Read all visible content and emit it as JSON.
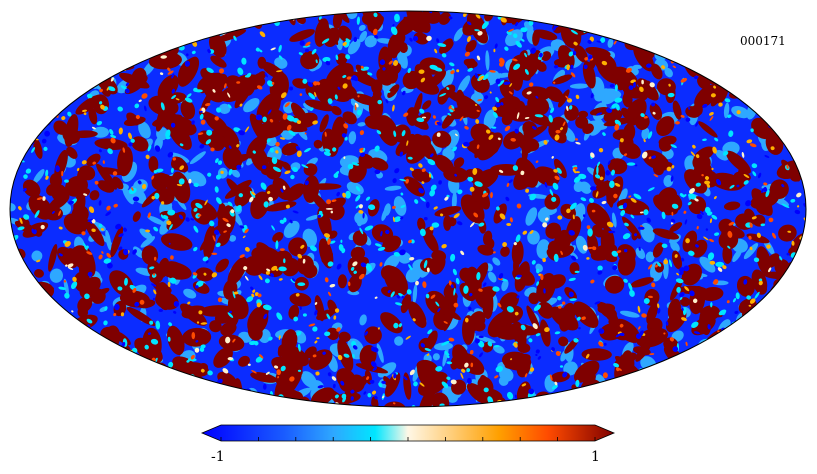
{
  "map": {
    "id_label": "000171",
    "projection": "mollweide",
    "colormap": "jet",
    "colors": {
      "low": "#0000ff",
      "mid_low": "#2ea8ff",
      "cyan": "#00e6ff",
      "neutral": "#fff2cc",
      "mid_high": "#ffb000",
      "high_orange": "#ff4b00",
      "high": "#7f0000",
      "outline": "#000000"
    }
  },
  "colorbar": {
    "min_label": "-1",
    "max_label": "1",
    "range": [
      -1,
      1
    ],
    "tick_count": 11
  }
}
